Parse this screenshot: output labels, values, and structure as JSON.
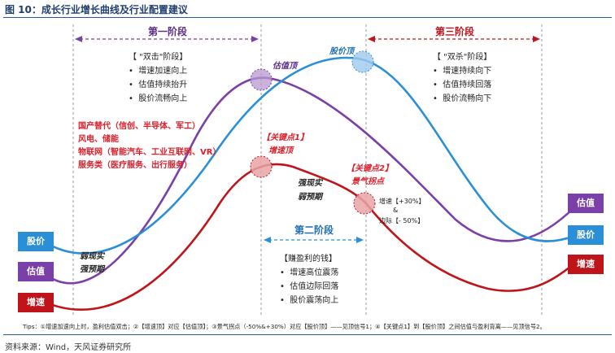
{
  "title": "图 10：成长行业增长曲线及行业配置建议",
  "phases": {
    "phase1": "第一阶段",
    "phase2": "第二阶段",
    "phase3": "第三阶段"
  },
  "block_phase1": {
    "head": "【 \"双击\"阶段】",
    "items": [
      "增速加速向上",
      "估值持续抬升",
      "股价流畅向上"
    ]
  },
  "block_phase3": {
    "head": "【 \"双杀\"阶段】",
    "items": [
      "增速持续向下",
      "估值持续回落",
      "股价流畅向下"
    ]
  },
  "block_phase2": {
    "head": "【赚盈利的钱】",
    "items": [
      "增速高位震荡",
      "估值边际回落",
      "股价震荡向上"
    ]
  },
  "red_list": [
    "国产替代（信创、半导体、军工）",
    "风电、储能",
    "物联网（智能汽车、工业互联网、VR）",
    "服务类（医疗服务、出行服务）"
  ],
  "points": {
    "val_top": "估值顶",
    "price_top": "股价顶",
    "key1": "【关键点1】",
    "growth_top": "增速顶",
    "key2": "【关键点2】",
    "boom_inflection": "景气拐点",
    "strong_now_weak_exp": "强现实",
    "weak_exp": "弱预期",
    "weak_now": "弱现实",
    "strong_exp": "强预期",
    "growth_delta": "增速【+30%】",
    "and": "&",
    "margin_delta": "边际【- 50%】"
  },
  "left_labels": {
    "price": "股价",
    "valuation": "估值",
    "growth": "增速"
  },
  "right_labels": {
    "valuation": "估值",
    "price": "股价",
    "growth": "增速"
  },
  "tips": "Tips：①增速加速向上时，盈利估值双击；②【增速顶】对应【估值顶】；③景气拐点（-50%&+30%）对应【股价顶】——见顶信号1；④【关键点1】到【股价顶】之间估值与盈利背离——见顶信号2。",
  "source": "资料来源：Wind，天风证券研究所",
  "colors": {
    "price": "#2a8fd6",
    "valuation": "#7b3fa8",
    "growth": "#c0141b",
    "phase_arrow_purple": "#7b3fa8",
    "phase_arrow_blue": "#2a8fd6",
    "phase_arrow_red": "#c0141b",
    "key_red": "#d9202b",
    "title_blue": "#1f3f6e"
  }
}
